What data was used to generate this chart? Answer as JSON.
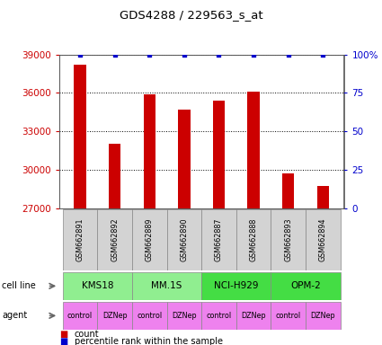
{
  "title": "GDS4288 / 229563_s_at",
  "samples": [
    "GSM662891",
    "GSM662892",
    "GSM662889",
    "GSM662890",
    "GSM662887",
    "GSM662888",
    "GSM662893",
    "GSM662894"
  ],
  "counts": [
    38200,
    32000,
    35900,
    34700,
    35400,
    36100,
    29700,
    28700
  ],
  "percentile_ranks": [
    100,
    100,
    100,
    100,
    100,
    100,
    100,
    100
  ],
  "ylim_left": [
    27000,
    39000
  ],
  "yticks_left": [
    27000,
    30000,
    33000,
    36000,
    39000
  ],
  "ylim_right": [
    0,
    100
  ],
  "yticks_right": [
    0,
    25,
    50,
    75,
    100
  ],
  "yticklabels_right": [
    "0",
    "25",
    "50",
    "75",
    "100%"
  ],
  "bar_color": "#CC0000",
  "dot_color": "#0000CC",
  "cell_lines": [
    {
      "label": "KMS18",
      "start": 0,
      "end": 2,
      "color": "#90EE90"
    },
    {
      "label": "MM.1S",
      "start": 2,
      "end": 4,
      "color": "#90EE90"
    },
    {
      "label": "NCI-H929",
      "start": 4,
      "end": 6,
      "color": "#44DD44"
    },
    {
      "label": "OPM-2",
      "start": 6,
      "end": 8,
      "color": "#44DD44"
    }
  ],
  "agents": [
    "control",
    "DZNep",
    "control",
    "DZNep",
    "control",
    "DZNep",
    "control",
    "DZNep"
  ],
  "agent_color": "#EE82EE",
  "sample_bg_color": "#D3D3D3",
  "left_tick_color": "#CC0000",
  "right_tick_color": "#0000CC",
  "legend_count_color": "#CC0000",
  "legend_pct_color": "#0000CC",
  "cell_line_label": "cell line",
  "agent_label": "agent",
  "legend_count_label": "count",
  "legend_pct_label": "percentile rank within the sample",
  "bar_width": 0.35
}
